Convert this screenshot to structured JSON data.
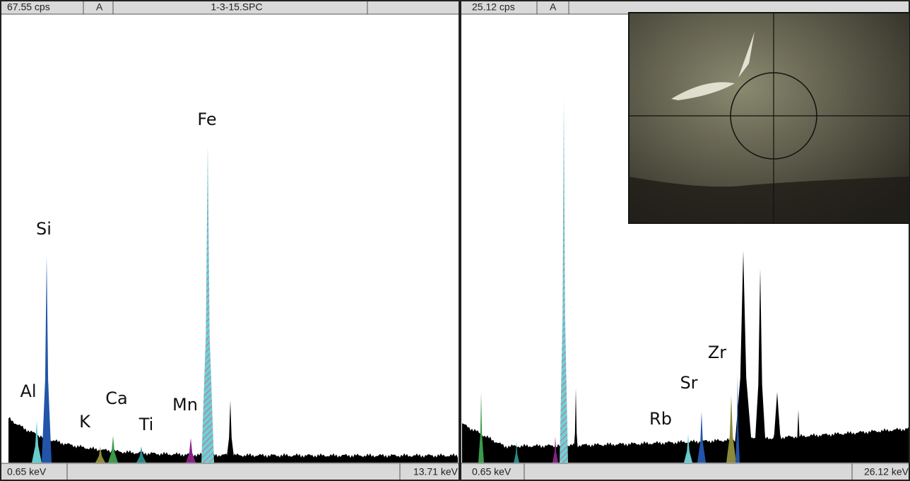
{
  "panels": [
    {
      "cps": "67.55 cps",
      "mode": "A",
      "file": "1-3-15.SPC",
      "start": "0.65 keV",
      "end": "13.71 keV",
      "peaks": [
        "Al",
        "Si",
        "K",
        "Ca",
        "Ti",
        "Mn",
        "Fe"
      ]
    },
    {
      "cps": "25.12 cps",
      "mode": "A",
      "start": "0.65 keV",
      "end": "26.12 keV",
      "peaks": [
        "Rb",
        "Sr",
        "Zr"
      ]
    }
  ]
}
